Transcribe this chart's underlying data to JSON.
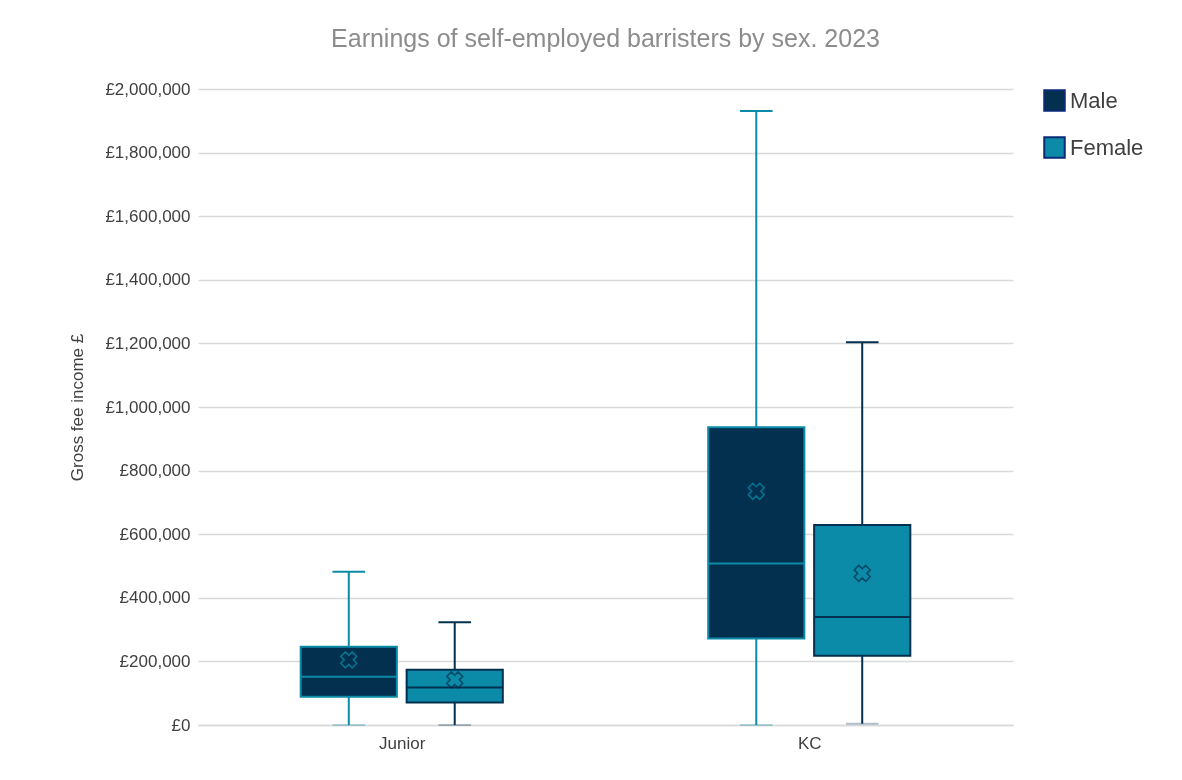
{
  "chart_data": {
    "type": "box",
    "title": "Earnings of self-employed barristers by sex. 2023",
    "ylabel": "Gross fee income £",
    "categories": [
      "Junior",
      "KC"
    ],
    "series": [
      {
        "name": "Male",
        "color": "#03304f",
        "boxes": [
          {
            "low": 0,
            "q1": 89000,
            "median": 152000,
            "q3": 246000,
            "high": 482000,
            "mean": 205000
          },
          {
            "low": 0,
            "q1": 272000,
            "median": 508000,
            "q3": 936000,
            "high": 1931000,
            "mean": 735000
          }
        ]
      },
      {
        "name": "Female",
        "color": "#0b8ba8",
        "boxes": [
          {
            "low": 0,
            "q1": 71000,
            "median": 118000,
            "q3": 174000,
            "high": 323000,
            "mean": 142000
          },
          {
            "low": 4000,
            "q1": 218000,
            "median": 340000,
            "q3": 629000,
            "high": 1204000,
            "mean": 477000
          }
        ]
      }
    ],
    "ylim": [
      0,
      2000000
    ],
    "yticks": [
      {
        "value": 0,
        "label": "£0"
      },
      {
        "value": 200000,
        "label": "£200,000"
      },
      {
        "value": 400000,
        "label": "£400,000"
      },
      {
        "value": 600000,
        "label": "£600,000"
      },
      {
        "value": 800000,
        "label": "£800,000"
      },
      {
        "value": 1000000,
        "label": "£1,000,000"
      },
      {
        "value": 1200000,
        "label": "£1,200,000"
      },
      {
        "value": 1400000,
        "label": "£1,400,000"
      },
      {
        "value": 1600000,
        "label": "£1,600,000"
      },
      {
        "value": 1800000,
        "label": "£1,800,000"
      },
      {
        "value": 2000000,
        "label": "£2,000,000"
      }
    ],
    "grid": "y",
    "legend": "right",
    "marker": "cross"
  }
}
